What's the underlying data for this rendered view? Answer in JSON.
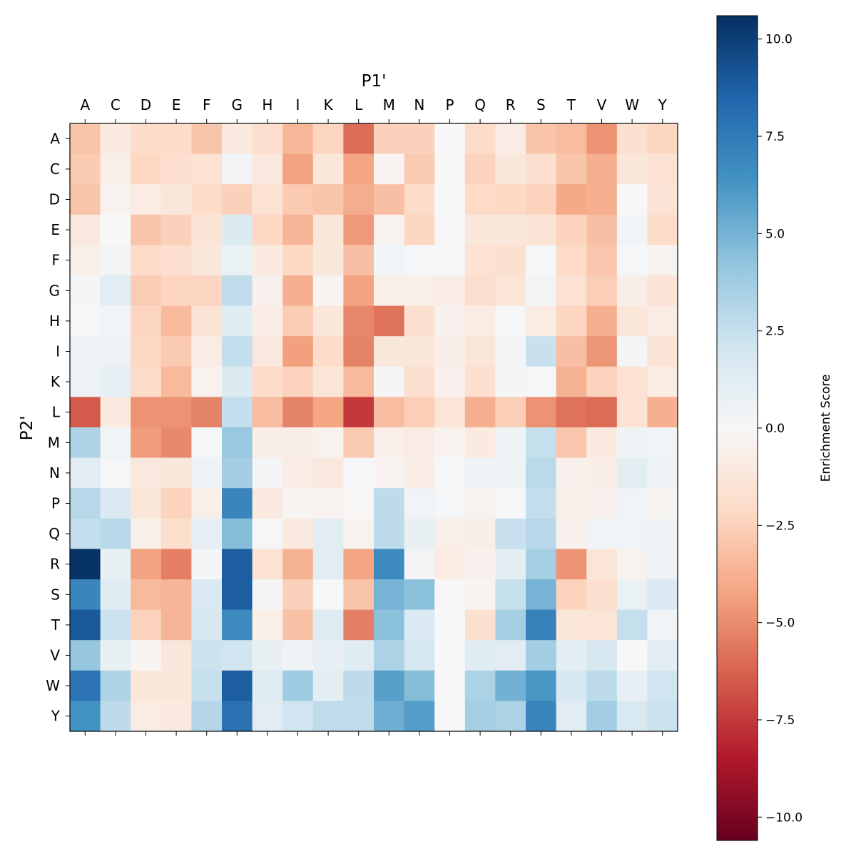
{
  "chart_data": {
    "type": "heatmap",
    "title": "",
    "xlabel": "P1'",
    "ylabel": "P2'",
    "x_categories": [
      "A",
      "C",
      "D",
      "E",
      "F",
      "G",
      "H",
      "I",
      "K",
      "L",
      "M",
      "N",
      "P",
      "Q",
      "R",
      "S",
      "T",
      "V",
      "W",
      "Y"
    ],
    "y_categories": [
      "A",
      "C",
      "D",
      "E",
      "F",
      "G",
      "H",
      "I",
      "K",
      "L",
      "M",
      "N",
      "P",
      "Q",
      "R",
      "S",
      "T",
      "V",
      "W",
      "Y"
    ],
    "colormap": "RdBu",
    "colormap_stops": [
      "#67001f",
      "#b2182b",
      "#d6604d",
      "#f4a582",
      "#fddbc7",
      "#f7f7f7",
      "#d1e5f0",
      "#92c5de",
      "#4393c3",
      "#2166ac",
      "#053061"
    ],
    "vmin": -10.6,
    "vmax": 10.6,
    "colorbar": {
      "label": "Enrichment Score",
      "ticks": [
        10.0,
        7.5,
        5.0,
        2.5,
        0.0,
        -2.5,
        -5.0,
        -7.5,
        -10.0
      ],
      "tick_labels": [
        "10.0",
        "7.5",
        "5.0",
        "2.5",
        "0.0",
        "−2.5",
        "−5.0",
        "−7.5",
        "−10.0"
      ]
    },
    "values": [
      [
        -3,
        -1,
        -2,
        -2,
        -3,
        -1,
        -1.8,
        -3.5,
        -2.3,
        -6,
        -2.5,
        -2.5,
        0,
        -2,
        -0.8,
        -3,
        -3.3,
        -4.8,
        -1.7,
        -2.3
      ],
      [
        -2.8,
        -0.6,
        -2.2,
        -1.8,
        -1.6,
        0.3,
        -1.1,
        -4.3,
        -1.3,
        -4.2,
        -0.2,
        -2.8,
        0,
        -2.4,
        -1.2,
        -1.8,
        -3,
        -3.8,
        -1.3,
        -1.6
      ],
      [
        -3,
        -0.4,
        -0.9,
        -1.2,
        -2,
        -2.5,
        -1.6,
        -2.8,
        -3,
        -3.9,
        -3.2,
        -2,
        0,
        -2.1,
        -2.2,
        -2.4,
        -4.1,
        -3.8,
        0,
        -1.5
      ],
      [
        -1.1,
        0,
        -3,
        -2.5,
        -1.5,
        1.5,
        -2.2,
        -3.6,
        -1.3,
        -4.6,
        -0.4,
        -2.3,
        0,
        -1.2,
        -1.2,
        -1.5,
        -2.4,
        -3.2,
        0.4,
        -2
      ],
      [
        -0.6,
        0.3,
        -2,
        -1.8,
        -1.2,
        0.7,
        -1,
        -2.2,
        -1.2,
        -3.2,
        0.4,
        0.1,
        0.1,
        -1.6,
        -1.7,
        0.1,
        -2.1,
        -2.9,
        0.1,
        -0.4
      ],
      [
        0.2,
        1.2,
        -2.7,
        -2.3,
        -2.3,
        2.7,
        -0.5,
        -3.8,
        -0.3,
        -4.3,
        -0.6,
        -0.6,
        -0.8,
        -1.8,
        -1.4,
        0.3,
        -1.6,
        -2.6,
        -0.7,
        -1.5
      ],
      [
        0.1,
        0.4,
        -2.3,
        -3.4,
        -1.5,
        1.3,
        -0.8,
        -2.7,
        -1.3,
        -5.2,
        -5.8,
        -1.7,
        -0.5,
        -0.9,
        0.1,
        -0.9,
        -2.3,
        -3.8,
        -1.3,
        -0.9
      ],
      [
        0.6,
        0.6,
        -2.2,
        -2.8,
        -0.8,
        2.6,
        -1.1,
        -4.4,
        -2,
        -5.3,
        -1.2,
        -1.3,
        -0.7,
        -1.3,
        0.2,
        2.4,
        -3.2,
        -4.7,
        0.3,
        -1.5
      ],
      [
        0.6,
        1,
        -2,
        -3.4,
        -0.4,
        1.5,
        -2,
        -2.4,
        -1.4,
        -3.4,
        0.2,
        -1.8,
        -0.5,
        -1.8,
        0.2,
        0.1,
        -3.7,
        -2.4,
        -1.6,
        -0.9
      ],
      [
        -6.5,
        -1,
        -4.8,
        -4.8,
        -5.3,
        2.6,
        -3.3,
        -5.3,
        -4.2,
        -7.5,
        -3.3,
        -2.6,
        -1.4,
        -3.8,
        -2.6,
        -4.8,
        -5.8,
        -6,
        -1.6,
        -3.8
      ],
      [
        3.3,
        0.4,
        -4.5,
        -5.1,
        0.1,
        4,
        -0.7,
        -0.7,
        -0.4,
        -2.8,
        -0.6,
        -0.8,
        -0.4,
        -1,
        0.5,
        2.5,
        -2.9,
        -1,
        0.5,
        0.4
      ],
      [
        1.2,
        0.1,
        -1.1,
        -1.2,
        0.5,
        3.7,
        0.3,
        -0.8,
        -1.1,
        0.1,
        -0.3,
        -0.8,
        0.1,
        0.5,
        0.5,
        2.9,
        -0.5,
        -0.7,
        1.1,
        0.5
      ],
      [
        3,
        1.6,
        -1.3,
        -2.4,
        -0.6,
        7,
        -1,
        -0.2,
        -0.3,
        -0.1,
        2.8,
        0.4,
        0.1,
        -0.4,
        0.1,
        2.6,
        -0.6,
        -0.5,
        0.4,
        -0.2
      ],
      [
        2.6,
        3,
        -0.6,
        -1.9,
        0.9,
        4.6,
        0.1,
        -1,
        1.2,
        -0.4,
        2.8,
        0.8,
        -0.6,
        -0.7,
        2.4,
        3,
        -0.5,
        0.4,
        0.4,
        0.6
      ],
      [
        10.5,
        0.8,
        -4.3,
        -5.4,
        0.2,
        8.8,
        -1.6,
        -3.7,
        1.2,
        -4.2,
        6.8,
        0.3,
        -0.9,
        -0.5,
        1.1,
        3.6,
        -4.8,
        -1.4,
        -0.4,
        0.6
      ],
      [
        7,
        1.3,
        -3.4,
        -3.6,
        1.6,
        8.8,
        0.2,
        -2.5,
        0.1,
        -3,
        5,
        4.4,
        0,
        -0.3,
        2.5,
        5,
        -2.4,
        -1.8,
        0.7,
        1.6
      ],
      [
        9,
        2.3,
        -2.4,
        -3.6,
        1.8,
        6.8,
        -0.6,
        -3.1,
        1.4,
        -5.4,
        4.4,
        1.6,
        0,
        -1.7,
        3.6,
        7.2,
        -1.3,
        -1.4,
        2.5,
        0.4
      ],
      [
        4.1,
        0.8,
        -0.2,
        -1.2,
        2.3,
        2.1,
        0.8,
        0.5,
        0.9,
        1.3,
        3.4,
        1.9,
        0,
        1.3,
        1.2,
        3.7,
        1.1,
        1.8,
        0,
        1.1
      ],
      [
        7.8,
        3.3,
        -1.3,
        -1.3,
        2.5,
        8.8,
        1.4,
        3.8,
        1.1,
        2.8,
        5.8,
        4.6,
        0,
        3.4,
        5.1,
        6.2,
        1.8,
        2.8,
        0.9,
        2.1
      ],
      [
        6.4,
        2.8,
        -0.9,
        -1,
        3.1,
        7.9,
        1.2,
        2.1,
        2.7,
        2.7,
        5.2,
        5.9,
        0,
        3.6,
        3.4,
        7,
        1.2,
        3.7,
        1.7,
        2.3
      ]
    ]
  }
}
